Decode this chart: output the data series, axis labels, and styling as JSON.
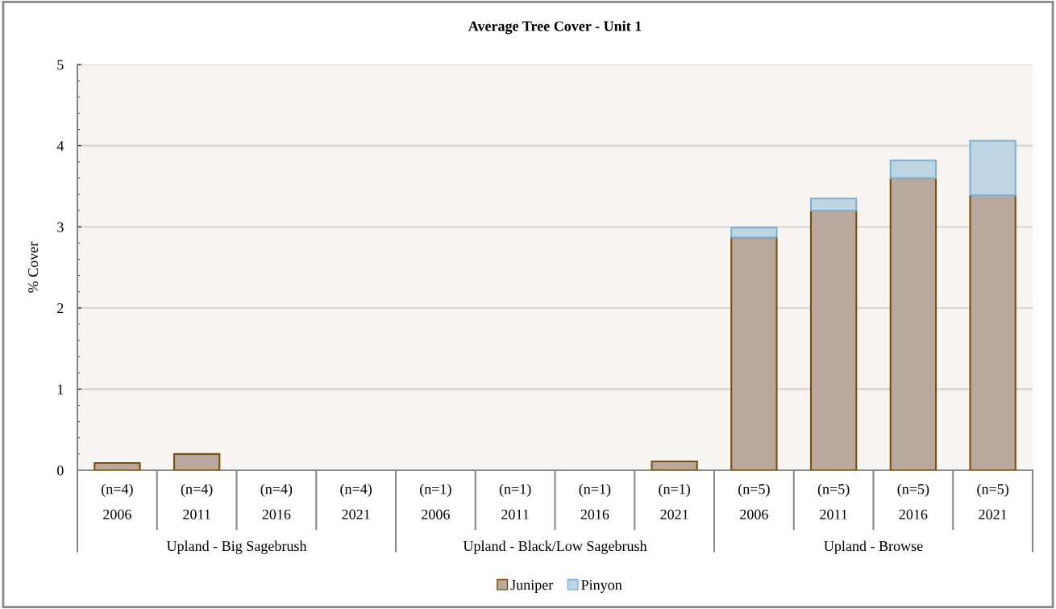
{
  "chart_data": {
    "type": "bar",
    "title": "Average Tree Cover - Unit 1",
    "ylabel": "% Cover",
    "stacked": true,
    "categories": [
      "(n=4)\n2006",
      "(n=4)\n2011",
      "(n=4)\n2016",
      "(n=4)\n2021",
      "(n=1)\n2006",
      "(n=1)\n2011",
      "(n=1)\n2016",
      "(n=1)\n2021",
      "(n=5)\n2006",
      "(n=5)\n2011",
      "(n=5)\n2016",
      "(n=5)\n2021"
    ],
    "series": [
      {
        "name": "Juniper",
        "color": "#b8a89e",
        "values": [
          0.09,
          0.2,
          null,
          null,
          null,
          null,
          null,
          0.11,
          2.87,
          3.2,
          3.6,
          3.39
        ]
      },
      {
        "name": "Pinyon",
        "color": "#bed5e3",
        "values": [
          null,
          null,
          null,
          null,
          null,
          null,
          null,
          null,
          0.12,
          0.15,
          0.22,
          0.67
        ]
      }
    ],
    "annotations": [
      "Upland - Big Sagebrush",
      "Upland - Black/Low Sagebrush",
      "Upland - Browse"
    ],
    "ylim": [
      0,
      5
    ],
    "yticks": [
      0,
      1,
      2,
      3,
      4,
      5
    ],
    "grid": "y",
    "legend": "bottom"
  }
}
